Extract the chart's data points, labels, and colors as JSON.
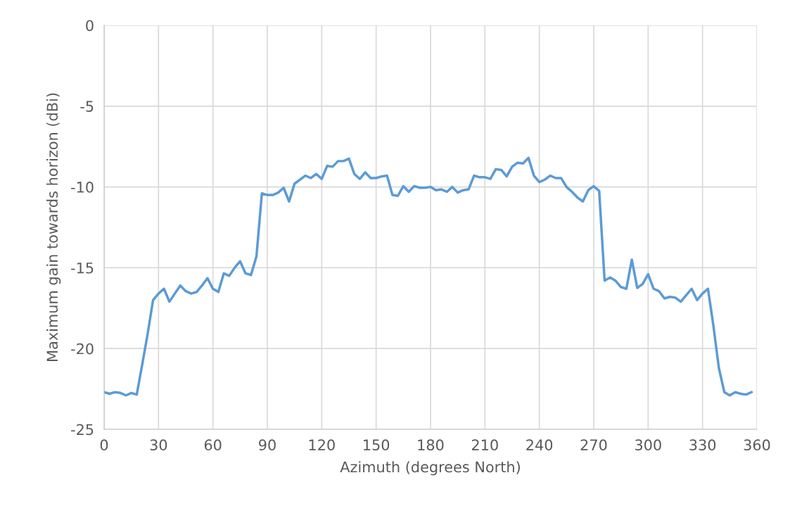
{
  "chart_data": {
    "type": "line",
    "xlabel": "Azimuth (degrees North)",
    "ylabel": "Maximum gain towards horizon (dBi)",
    "xlim": [
      0,
      360
    ],
    "xticks": [
      0,
      30,
      60,
      90,
      120,
      150,
      180,
      210,
      240,
      270,
      300,
      330,
      360
    ],
    "ylim": [
      -25,
      0
    ],
    "yticks": [
      -25,
      -20,
      -15,
      -10,
      -5,
      0
    ],
    "grid": true,
    "marker": "none",
    "line_style": "solid",
    "x": [
      0,
      3,
      6,
      9,
      12,
      15,
      18,
      21,
      24,
      27,
      30,
      33,
      36,
      39,
      42,
      45,
      48,
      51,
      54,
      57,
      60,
      63,
      66,
      69,
      72,
      75,
      78,
      81,
      84,
      87,
      90,
      93,
      96,
      99,
      102,
      105,
      108,
      111,
      114,
      117,
      120,
      123,
      126,
      129,
      132,
      135,
      138,
      141,
      144,
      147,
      150,
      153,
      156,
      159,
      162,
      165,
      168,
      171,
      174,
      177,
      180,
      183,
      186,
      189,
      192,
      195,
      198,
      201,
      204,
      207,
      210,
      213,
      216,
      219,
      222,
      225,
      228,
      231,
      234,
      237,
      240,
      243,
      246,
      249,
      252,
      255,
      258,
      261,
      264,
      267,
      270,
      273,
      276,
      279,
      282,
      285,
      288,
      291,
      294,
      297,
      300,
      303,
      306,
      309,
      312,
      315,
      318,
      321,
      324,
      327,
      330,
      333,
      336,
      339,
      342,
      345,
      348,
      351,
      354,
      357
    ],
    "series": [
      {
        "color": "#5b9bd5",
        "values": [
          -22.7,
          -22.8,
          -22.7,
          -22.75,
          -22.9,
          -22.75,
          -22.85,
          -21.0,
          -19.1,
          -17.0,
          -16.6,
          -16.3,
          -17.1,
          -16.6,
          -16.1,
          -16.45,
          -16.6,
          -16.5,
          -16.1,
          -15.65,
          -16.3,
          -16.5,
          -15.35,
          -15.5,
          -15.0,
          -14.6,
          -15.35,
          -15.45,
          -14.3,
          -10.4,
          -10.5,
          -10.5,
          -10.35,
          -10.05,
          -10.9,
          -9.8,
          -9.55,
          -9.3,
          -9.45,
          -9.2,
          -9.5,
          -8.7,
          -8.75,
          -8.4,
          -8.4,
          -8.25,
          -9.2,
          -9.5,
          -9.1,
          -9.45,
          -9.45,
          -9.35,
          -9.3,
          -10.5,
          -10.55,
          -9.95,
          -10.3,
          -9.95,
          -10.05,
          -10.05,
          -10.0,
          -10.2,
          -10.15,
          -10.3,
          -10.0,
          -10.35,
          -10.2,
          -10.15,
          -9.3,
          -9.4,
          -9.4,
          -9.5,
          -8.9,
          -8.95,
          -9.35,
          -8.75,
          -8.5,
          -8.55,
          -8.2,
          -9.3,
          -9.7,
          -9.55,
          -9.3,
          -9.45,
          -9.45,
          -10.0,
          -10.3,
          -10.65,
          -10.9,
          -10.2,
          -9.95,
          -10.25,
          -15.8,
          -15.6,
          -15.8,
          -16.2,
          -16.3,
          -14.5,
          -16.25,
          -16.0,
          -15.4,
          -16.3,
          -16.45,
          -16.9,
          -16.8,
          -16.85,
          -17.1,
          -16.7,
          -16.3,
          -17.0,
          -16.6,
          -16.3,
          -18.6,
          -21.2,
          -22.7,
          -22.9,
          -22.7,
          -22.8,
          -22.85,
          -22.7
        ]
      }
    ]
  }
}
